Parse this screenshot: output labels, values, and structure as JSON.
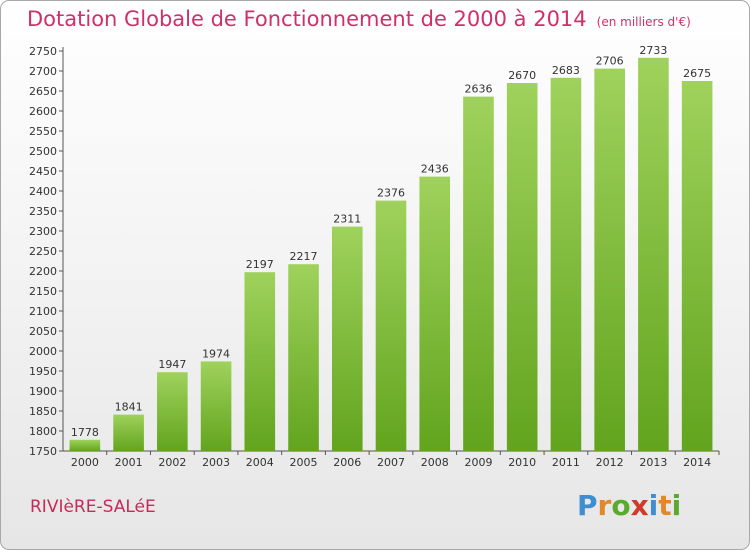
{
  "header": {
    "title": "Dotation Globale de Fonctionnement de 2000 à 2014",
    "unit": "(en milliers d'€)"
  },
  "footer": {
    "commune": "RIVIèRE-SALéE",
    "logo_letters": [
      {
        "ch": "P",
        "color": "#3e8ed0"
      },
      {
        "ch": "r",
        "color": "#e0892a"
      },
      {
        "ch": "o",
        "color": "#5aaa2e"
      },
      {
        "ch": "x",
        "color": "#d03a2a"
      },
      {
        "ch": "i",
        "color": "#3e8ed0"
      },
      {
        "ch": "t",
        "color": "#e0892a"
      },
      {
        "ch": "i",
        "color": "#5aaa2e"
      }
    ]
  },
  "colors": {
    "bar_top": "#9fd25c",
    "bar_bottom": "#62a41e",
    "title": "#d0306a"
  },
  "chart_data": {
    "type": "bar",
    "title": "Dotation Globale de Fonctionnement de 2000 à 2014",
    "subtitle": "(en milliers d'€)",
    "xlabel": "",
    "ylabel": "",
    "categories": [
      "2000",
      "2001",
      "2002",
      "2003",
      "2004",
      "2005",
      "2006",
      "2007",
      "2008",
      "2009",
      "2010",
      "2011",
      "2012",
      "2013",
      "2014"
    ],
    "values": [
      1778,
      1841,
      1947,
      1974,
      2197,
      2217,
      2311,
      2376,
      2436,
      2636,
      2670,
      2683,
      2706,
      2733,
      2675
    ],
    "ylim": [
      1750,
      2750
    ],
    "ytick_step": 50,
    "grid": false,
    "legend": "none"
  }
}
